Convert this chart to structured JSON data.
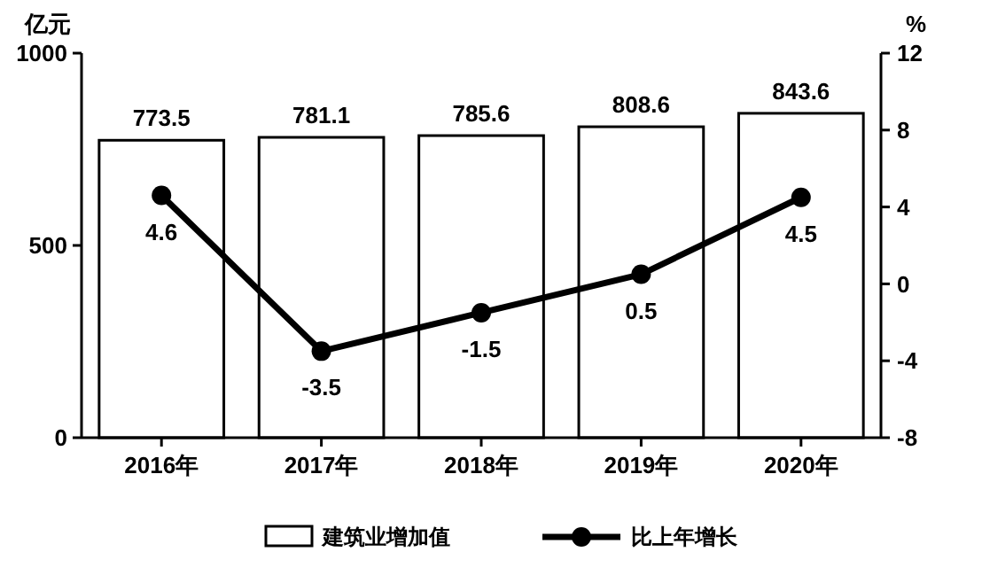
{
  "chart_data": {
    "type": "bar",
    "categories": [
      "2016年",
      "2017年",
      "2018年",
      "2019年",
      "2020年"
    ],
    "ylabel": "亿元",
    "y2label": "%",
    "series": [
      {
        "name": "建筑业增加值",
        "color": "#ffffff",
        "values": [
          773.5,
          781.1,
          785.6,
          808.6,
          843.6
        ]
      },
      {
        "name": "比上年增长",
        "type": "line",
        "axis": "y2",
        "color": "#000000",
        "values": [
          4.6,
          -3.5,
          -1.5,
          0.5,
          4.5
        ]
      }
    ],
    "ylim": [
      0,
      1000
    ],
    "yticks": [
      0,
      500,
      1000
    ],
    "y2lim": [
      -8,
      12
    ],
    "y2ticks": [
      -8,
      -4,
      0,
      4,
      8,
      12
    ],
    "data_labels": true,
    "legend": "bottom",
    "marker": "circle",
    "grid": false
  }
}
